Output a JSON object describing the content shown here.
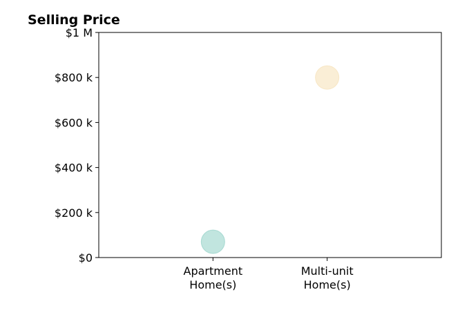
{
  "chart_data": {
    "type": "scatter",
    "title": "Selling Price",
    "xlabel": "",
    "ylabel": "",
    "categories": [
      [
        "Apartment",
        "Home(s)"
      ],
      [
        "Multi-unit",
        "Home(s)"
      ]
    ],
    "points": [
      {
        "category_index": 0,
        "value": 70000,
        "color": "#8ecfc5"
      },
      {
        "category_index": 1,
        "value": 800000,
        "color": "#f5e0b5"
      }
    ],
    "ylim": [
      0,
      1000000
    ],
    "xlim": [
      -1,
      2
    ],
    "y_ticks": [
      {
        "value": 0,
        "label": "$0"
      },
      {
        "value": 200000,
        "label": "$200 k"
      },
      {
        "value": 400000,
        "label": "$400 k"
      },
      {
        "value": 600000,
        "label": "$600 k"
      },
      {
        "value": 800000,
        "label": "$800 k"
      },
      {
        "value": 1000000,
        "label": "$1 M"
      }
    ],
    "grid": false,
    "legend": "none"
  }
}
